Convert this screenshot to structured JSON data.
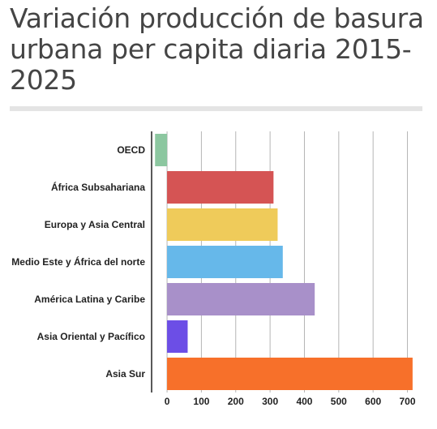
{
  "title": "Variación producción de basura urbana per capita diaria 2015-2025",
  "chart_data": {
    "type": "bar",
    "orientation": "horizontal",
    "title": "Variación producción de basura urbana per capita diaria 2015-2025",
    "xlabel": "",
    "ylabel": "",
    "categories": [
      "OECD",
      "África Subsahariana",
      "Europa y Asia Central",
      "Medio Este y África del norte",
      "América Latina y Caribe",
      "Asia Oriental y Pacífico",
      "Asia Sur"
    ],
    "values": [
      -35,
      310,
      322,
      337,
      430,
      60,
      715
    ],
    "colors": [
      "#8cc7a0",
      "#d55454",
      "#efcb5a",
      "#66b8ea",
      "#a890c9",
      "#6c4ee6",
      "#f7702a"
    ],
    "xlim": [
      -45,
      720
    ],
    "xticks": [
      0,
      100,
      200,
      300,
      400,
      500,
      600,
      700
    ],
    "tick_labels": [
      "0",
      "100",
      "200",
      "300",
      "400",
      "500",
      "600",
      "700"
    ],
    "grid": true,
    "legend": "none"
  }
}
